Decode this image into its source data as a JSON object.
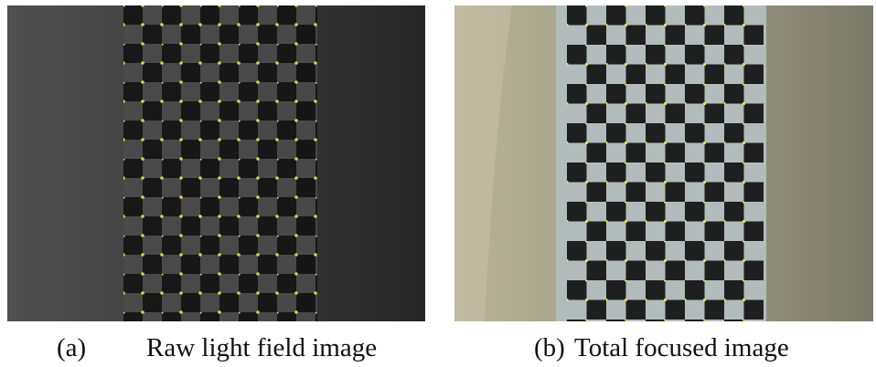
{
  "panels": [
    {
      "label": "(a)",
      "caption": "Raw light field image"
    },
    {
      "label": "(b)",
      "caption": "Total focused image"
    }
  ]
}
